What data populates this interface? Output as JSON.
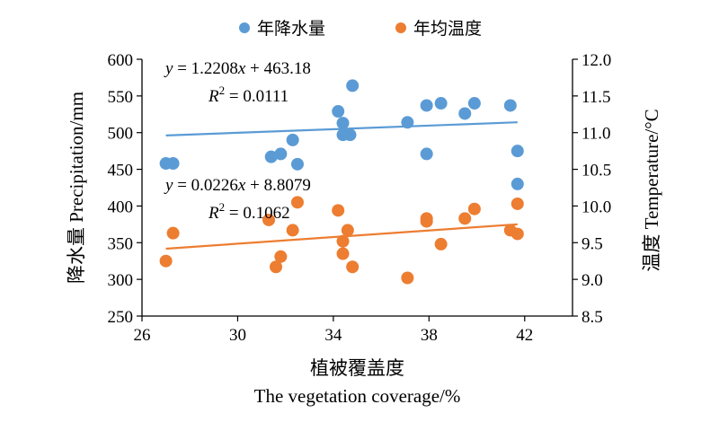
{
  "chart_data": {
    "type": "scatter",
    "xlabel_cn": "植被覆盖度",
    "xlabel_en": "The vegetation coverage/%",
    "ylabel_left": "降水量 Precipitation/mm",
    "ylabel_right": "温度 Temperature/°C",
    "x_range": [
      26,
      44
    ],
    "x_ticks": [
      26,
      30,
      34,
      38,
      42
    ],
    "y_left_range": [
      250,
      600
    ],
    "y_left_ticks": [
      250,
      300,
      350,
      400,
      450,
      500,
      550,
      600
    ],
    "y_right_range": [
      8.5,
      12.0
    ],
    "y_right_ticks": [
      "8.5",
      "9.0",
      "9.5",
      "10.0",
      "10.5",
      "11.0",
      "11.5",
      "12.0"
    ],
    "legend_position": "top",
    "series": [
      {
        "name": "年降水量",
        "axis": "left",
        "color": "#5B9BD5",
        "points": [
          [
            27.0,
            458
          ],
          [
            27.3,
            458
          ],
          [
            31.4,
            467
          ],
          [
            31.8,
            471
          ],
          [
            32.3,
            490
          ],
          [
            32.5,
            457
          ],
          [
            34.2,
            529
          ],
          [
            34.4,
            513
          ],
          [
            34.4,
            497
          ],
          [
            34.7,
            497
          ],
          [
            34.8,
            564
          ],
          [
            37.1,
            514
          ],
          [
            37.9,
            537
          ],
          [
            37.9,
            471
          ],
          [
            38.5,
            540
          ],
          [
            39.5,
            526
          ],
          [
            39.9,
            540
          ],
          [
            41.4,
            537
          ],
          [
            41.7,
            475
          ],
          [
            41.7,
            430
          ]
        ],
        "trendline": {
          "slope": 1.2208,
          "intercept": 463.18,
          "x_range": [
            27.0,
            41.7
          ]
        },
        "equation": "y = 1.2208x + 463.18",
        "r2": "R2 = 0.0111"
      },
      {
        "name": "年均温度",
        "axis": "right",
        "color": "#ED7D31",
        "points": [
          [
            27.0,
            9.25
          ],
          [
            27.3,
            9.63
          ],
          [
            31.3,
            9.81
          ],
          [
            31.6,
            9.17
          ],
          [
            31.8,
            9.31
          ],
          [
            32.3,
            9.67
          ],
          [
            32.5,
            10.05
          ],
          [
            34.2,
            9.94
          ],
          [
            34.4,
            9.52
          ],
          [
            34.4,
            9.35
          ],
          [
            34.6,
            9.67
          ],
          [
            34.8,
            9.17
          ],
          [
            37.1,
            9.02
          ],
          [
            37.9,
            9.83
          ],
          [
            37.9,
            9.79
          ],
          [
            38.5,
            9.48
          ],
          [
            39.5,
            9.83
          ],
          [
            39.9,
            9.96
          ],
          [
            41.4,
            9.67
          ],
          [
            41.7,
            9.62
          ],
          [
            41.7,
            10.03
          ]
        ],
        "trendline": {
          "slope": 0.0226,
          "intercept": 8.8079,
          "x_range": [
            27.0,
            41.7
          ]
        },
        "equation": "y = 0.0226x + 8.8079",
        "r2": "R2 = 0.1062"
      }
    ]
  }
}
